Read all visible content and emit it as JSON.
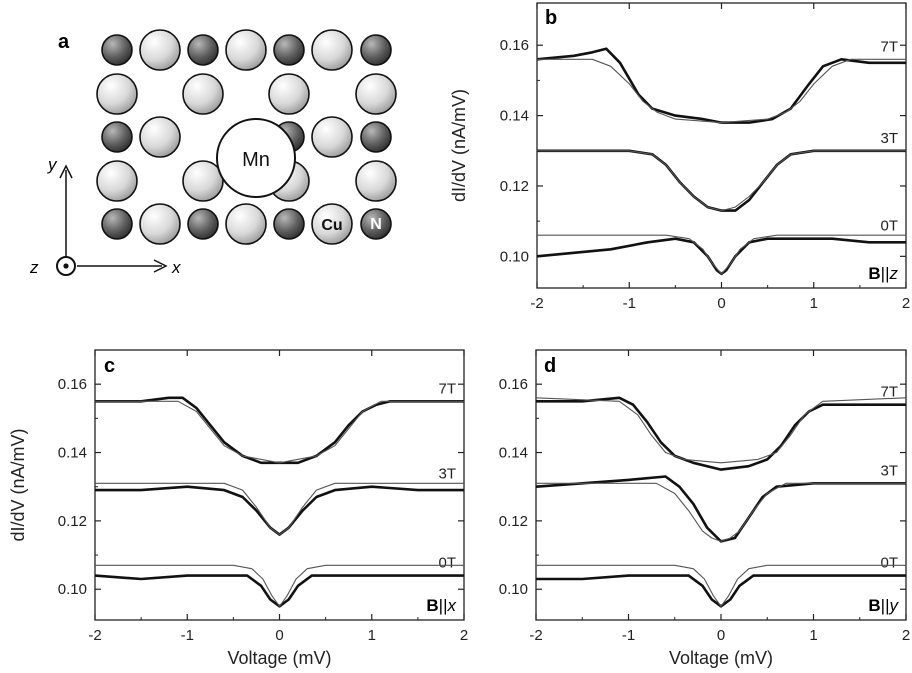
{
  "figure": {
    "panel_a": {
      "letter": "a",
      "labels": {
        "mn": "Mn",
        "cu": "Cu",
        "n": "N"
      },
      "axes": {
        "x": "x",
        "y": "y",
        "z": "z"
      },
      "colors": {
        "cu": "#d2d2d2",
        "n": "#6a6a6a",
        "mn": "#ffffff",
        "outline": "#111111"
      }
    }
  },
  "chart_data": [
    {
      "id": "b",
      "type": "line",
      "letter": "b",
      "field_label_bold": "B",
      "field_label_rest": "||",
      "field_label_axis": "z",
      "xlabel": "",
      "ylabel": "dI/dV (nA/mV)",
      "xlim": [
        -2,
        2
      ],
      "ylim": [
        0.091,
        0.172
      ],
      "xticks": [
        -2,
        -1,
        0,
        1,
        2
      ],
      "yticks": [
        0.1,
        0.12,
        0.14,
        0.16
      ],
      "ytick_labels": [
        "0.10",
        "0.12",
        "0.14",
        "0.16"
      ],
      "series": [
        {
          "name": "7T",
          "kind": "data",
          "x": [
            -2,
            -1.6,
            -1.4,
            -1.25,
            -1.1,
            -0.9,
            -0.75,
            -0.5,
            -0.2,
            0,
            0.3,
            0.55,
            0.75,
            0.95,
            1.1,
            1.3,
            1.6,
            2
          ],
          "y": [
            0.156,
            0.157,
            0.158,
            0.159,
            0.155,
            0.146,
            0.142,
            0.14,
            0.139,
            0.138,
            0.138,
            0.139,
            0.142,
            0.149,
            0.154,
            0.156,
            0.155,
            0.155
          ]
        },
        {
          "name": "7T",
          "kind": "fit",
          "x": [
            -2,
            -1.4,
            -1.2,
            -1.0,
            -0.85,
            -0.7,
            -0.5,
            0,
            0.5,
            0.7,
            0.85,
            1.0,
            1.2,
            1.4,
            2
          ],
          "y": [
            0.156,
            0.156,
            0.154,
            0.149,
            0.144,
            0.141,
            0.139,
            0.138,
            0.139,
            0.141,
            0.144,
            0.149,
            0.154,
            0.156,
            0.156
          ]
        },
        {
          "name": "3T",
          "kind": "data",
          "x": [
            -2,
            -1.5,
            -1.0,
            -0.75,
            -0.6,
            -0.45,
            -0.3,
            -0.15,
            0,
            0.15,
            0.3,
            0.45,
            0.6,
            0.75,
            1.0,
            1.5,
            2
          ],
          "y": [
            0.13,
            0.13,
            0.13,
            0.129,
            0.126,
            0.121,
            0.117,
            0.114,
            0.113,
            0.113,
            0.116,
            0.121,
            0.126,
            0.129,
            0.13,
            0.13,
            0.13
          ]
        },
        {
          "name": "3T",
          "kind": "fit",
          "x": [
            -2,
            -1.0,
            -0.75,
            -0.6,
            -0.45,
            -0.3,
            -0.15,
            0,
            0.15,
            0.3,
            0.45,
            0.6,
            0.75,
            1.0,
            2
          ],
          "y": [
            0.13,
            0.13,
            0.129,
            0.126,
            0.121,
            0.117,
            0.114,
            0.113,
            0.114,
            0.117,
            0.121,
            0.126,
            0.129,
            0.13,
            0.13
          ]
        },
        {
          "name": "0T",
          "kind": "data",
          "x": [
            -2,
            -1.6,
            -1.2,
            -0.8,
            -0.5,
            -0.3,
            -0.15,
            -0.05,
            0,
            0.05,
            0.15,
            0.3,
            0.5,
            0.8,
            1.2,
            1.6,
            2
          ],
          "y": [
            0.1,
            0.101,
            0.102,
            0.104,
            0.105,
            0.104,
            0.1,
            0.096,
            0.095,
            0.096,
            0.1,
            0.104,
            0.105,
            0.105,
            0.105,
            0.104,
            0.104
          ]
        },
        {
          "name": "0T",
          "kind": "fit",
          "x": [
            -2,
            -0.6,
            -0.35,
            -0.2,
            -0.1,
            0,
            0.1,
            0.2,
            0.35,
            0.6,
            2
          ],
          "y": [
            0.106,
            0.106,
            0.105,
            0.102,
            0.098,
            0.095,
            0.098,
            0.102,
            0.105,
            0.106,
            0.106
          ]
        }
      ]
    },
    {
      "id": "c",
      "type": "line",
      "letter": "c",
      "field_label_bold": "B",
      "field_label_rest": "||",
      "field_label_axis": "x",
      "xlabel": "Voltage (mV)",
      "ylabel": "dI/dV (nA/mV)",
      "xlim": [
        -2,
        2
      ],
      "ylim": [
        0.091,
        0.17
      ],
      "xticks": [
        -2,
        -1,
        0,
        1,
        2
      ],
      "yticks": [
        0.1,
        0.12,
        0.14,
        0.16
      ],
      "ytick_labels": [
        "0.10",
        "0.12",
        "0.14",
        "0.16"
      ],
      "series": [
        {
          "name": "7T",
          "kind": "data",
          "x": [
            -2,
            -1.5,
            -1.2,
            -1.05,
            -0.9,
            -0.75,
            -0.6,
            -0.4,
            -0.2,
            0,
            0.2,
            0.4,
            0.6,
            0.75,
            0.9,
            1.05,
            1.2,
            1.5,
            2
          ],
          "y": [
            0.155,
            0.155,
            0.156,
            0.156,
            0.153,
            0.148,
            0.143,
            0.139,
            0.137,
            0.137,
            0.137,
            0.139,
            0.143,
            0.148,
            0.152,
            0.154,
            0.155,
            0.155,
            0.155
          ]
        },
        {
          "name": "7T",
          "kind": "fit",
          "x": [
            -2,
            -1.1,
            -0.9,
            -0.75,
            -0.6,
            -0.4,
            0,
            0.4,
            0.6,
            0.75,
            0.9,
            1.1,
            2
          ],
          "y": [
            0.155,
            0.155,
            0.152,
            0.147,
            0.142,
            0.139,
            0.137,
            0.139,
            0.142,
            0.147,
            0.152,
            0.155,
            0.155
          ]
        },
        {
          "name": "3T",
          "kind": "data",
          "x": [
            -2,
            -1.5,
            -1.0,
            -0.6,
            -0.4,
            -0.25,
            -0.1,
            0,
            0.1,
            0.25,
            0.4,
            0.6,
            1.0,
            1.5,
            2
          ],
          "y": [
            0.129,
            0.129,
            0.13,
            0.129,
            0.127,
            0.123,
            0.118,
            0.116,
            0.118,
            0.123,
            0.127,
            0.129,
            0.13,
            0.129,
            0.129
          ]
        },
        {
          "name": "3T",
          "kind": "fit",
          "x": [
            -2,
            -0.6,
            -0.4,
            -0.25,
            -0.1,
            0,
            0.1,
            0.25,
            0.4,
            0.6,
            2
          ],
          "y": [
            0.131,
            0.131,
            0.129,
            0.124,
            0.118,
            0.116,
            0.118,
            0.124,
            0.129,
            0.131,
            0.131
          ]
        },
        {
          "name": "0T",
          "kind": "data",
          "x": [
            -2,
            -1.5,
            -1.0,
            -0.6,
            -0.35,
            -0.2,
            -0.1,
            0,
            0.1,
            0.2,
            0.35,
            0.6,
            1.0,
            1.5,
            2
          ],
          "y": [
            0.104,
            0.103,
            0.104,
            0.104,
            0.104,
            0.101,
            0.097,
            0.095,
            0.097,
            0.101,
            0.104,
            0.104,
            0.104,
            0.104,
            0.104
          ]
        },
        {
          "name": "0T",
          "kind": "fit",
          "x": [
            -2,
            -0.5,
            -0.3,
            -0.18,
            -0.08,
            0,
            0.08,
            0.18,
            0.3,
            0.5,
            2
          ],
          "y": [
            0.107,
            0.107,
            0.106,
            0.103,
            0.098,
            0.095,
            0.098,
            0.103,
            0.106,
            0.107,
            0.107
          ]
        }
      ]
    },
    {
      "id": "d",
      "type": "line",
      "letter": "d",
      "field_label_bold": "B",
      "field_label_rest": "||",
      "field_label_axis": "y",
      "xlabel": "Voltage (mV)",
      "ylabel": "",
      "xlim": [
        -2,
        2
      ],
      "ylim": [
        0.091,
        0.17
      ],
      "xticks": [
        -2,
        -1,
        0,
        1,
        2
      ],
      "yticks": [
        0.1,
        0.12,
        0.14,
        0.16
      ],
      "ytick_labels": [
        "0.10",
        "0.12",
        "0.14",
        "0.16"
      ],
      "series": [
        {
          "name": "7T",
          "kind": "data",
          "x": [
            -2,
            -1.5,
            -1.1,
            -0.95,
            -0.8,
            -0.65,
            -0.5,
            -0.3,
            0,
            0.3,
            0.5,
            0.65,
            0.8,
            0.95,
            1.1,
            1.5,
            2
          ],
          "y": [
            0.155,
            0.155,
            0.156,
            0.154,
            0.149,
            0.143,
            0.139,
            0.137,
            0.135,
            0.136,
            0.138,
            0.142,
            0.148,
            0.152,
            0.154,
            0.154,
            0.154
          ]
        },
        {
          "name": "7T",
          "kind": "fit",
          "x": [
            -2,
            -1.1,
            -0.9,
            -0.75,
            -0.6,
            -0.4,
            0,
            0.4,
            0.6,
            0.75,
            0.9,
            1.1,
            2
          ],
          "y": [
            0.156,
            0.155,
            0.151,
            0.145,
            0.14,
            0.138,
            0.137,
            0.138,
            0.14,
            0.145,
            0.151,
            0.155,
            0.156
          ]
        },
        {
          "name": "3T",
          "kind": "data",
          "x": [
            -2,
            -1.5,
            -1.0,
            -0.6,
            -0.45,
            -0.3,
            -0.15,
            0,
            0.15,
            0.3,
            0.45,
            0.6,
            1.0,
            1.5,
            2
          ],
          "y": [
            0.13,
            0.131,
            0.132,
            0.133,
            0.13,
            0.125,
            0.118,
            0.114,
            0.115,
            0.121,
            0.127,
            0.13,
            0.131,
            0.131,
            0.131
          ]
        },
        {
          "name": "3T",
          "kind": "fit",
          "x": [
            -2,
            -0.7,
            -0.5,
            -0.35,
            -0.2,
            -0.1,
            0,
            0.1,
            0.2,
            0.35,
            0.5,
            0.7,
            2
          ],
          "y": [
            0.131,
            0.131,
            0.128,
            0.123,
            0.117,
            0.115,
            0.114,
            0.115,
            0.117,
            0.123,
            0.128,
            0.131,
            0.131
          ]
        },
        {
          "name": "0T",
          "kind": "data",
          "x": [
            -2,
            -1.5,
            -1.0,
            -0.6,
            -0.35,
            -0.2,
            -0.1,
            0,
            0.1,
            0.2,
            0.35,
            0.6,
            1.0,
            1.5,
            2
          ],
          "y": [
            0.103,
            0.103,
            0.104,
            0.104,
            0.104,
            0.101,
            0.097,
            0.095,
            0.097,
            0.101,
            0.104,
            0.104,
            0.104,
            0.104,
            0.104
          ]
        },
        {
          "name": "0T",
          "kind": "fit",
          "x": [
            -2,
            -0.5,
            -0.3,
            -0.18,
            -0.08,
            0,
            0.08,
            0.18,
            0.3,
            0.5,
            2
          ],
          "y": [
            0.107,
            0.107,
            0.106,
            0.103,
            0.098,
            0.095,
            0.098,
            0.103,
            0.106,
            0.107,
            0.107
          ]
        }
      ]
    }
  ]
}
